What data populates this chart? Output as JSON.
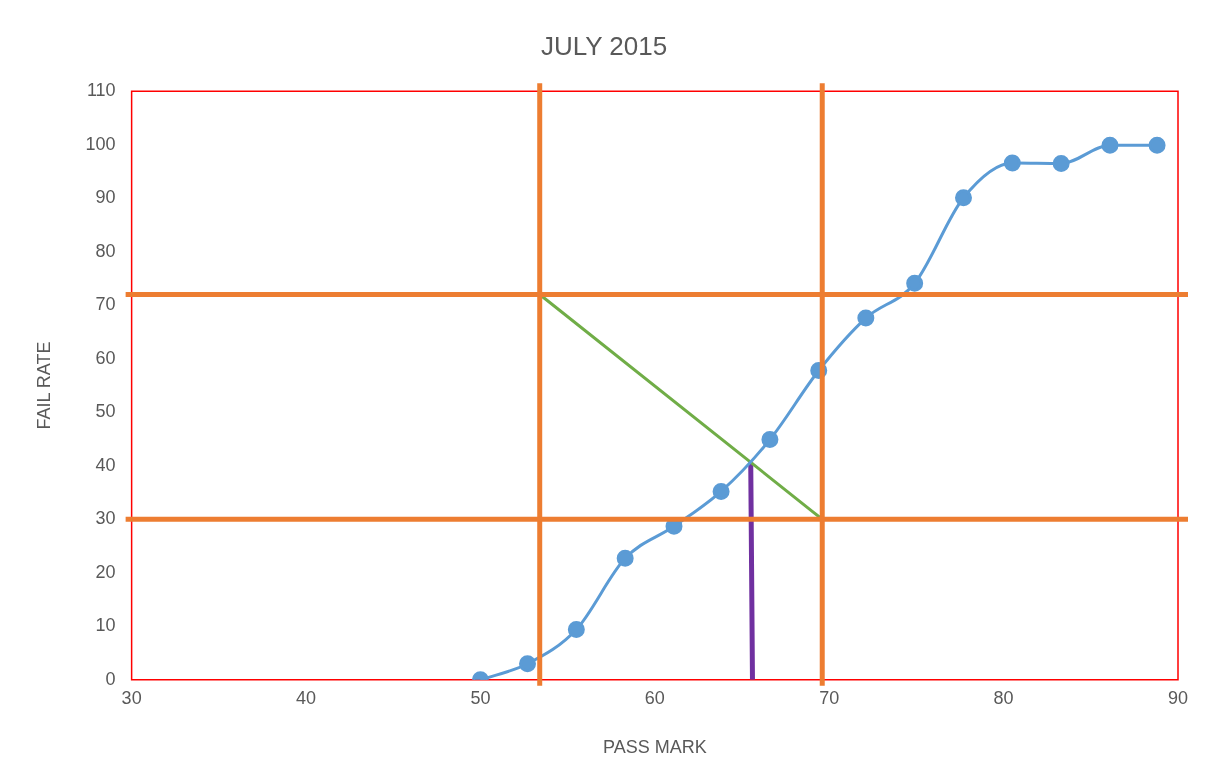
{
  "chart_data": {
    "type": "line",
    "title": "JULY 2015",
    "xlabel": "PASS MARK",
    "ylabel": "FAIL RATE",
    "xlim": [
      30,
      90
    ],
    "xticks": [
      30,
      40,
      50,
      60,
      70,
      80,
      90
    ],
    "ylim": [
      0,
      110
    ],
    "yticks": [
      0,
      10,
      20,
      30,
      40,
      50,
      60,
      70,
      80,
      90,
      100,
      110
    ],
    "grid": false,
    "legend": false,
    "marker": "circle",
    "series": [
      {
        "color": "#5b9bd5",
        "x": [
          50,
          52.7,
          55.5,
          58.3,
          61.1,
          63.8,
          66.6,
          69.4,
          72.1,
          74.9,
          77.7,
          80.5,
          83.3,
          86.1,
          88.8
        ],
        "values": [
          0,
          3,
          9.4,
          22.7,
          28.7,
          35.2,
          44.9,
          57.8,
          67.6,
          74.1,
          90.1,
          96.6,
          96.5,
          99.9,
          99.9
        ]
      },
      {
        "type": "line",
        "marker": "none",
        "color": "#70ad47",
        "x": [
          53.4,
          69.6
        ],
        "values": [
          72,
          30
        ]
      },
      {
        "type": "line",
        "marker": "none",
        "color": "#7030a0",
        "x": [
          65.5,
          65.6
        ],
        "values": [
          40.6,
          0
        ]
      }
    ],
    "ref_lines": [
      {
        "axis": "x",
        "value": 53.4,
        "color": "#ed7d31"
      },
      {
        "axis": "x",
        "value": 69.6,
        "color": "#ed7d31"
      },
      {
        "axis": "y",
        "value": 72,
        "color": "#ed7d31"
      },
      {
        "axis": "y",
        "value": 30,
        "color": "#ed7d31"
      }
    ]
  }
}
